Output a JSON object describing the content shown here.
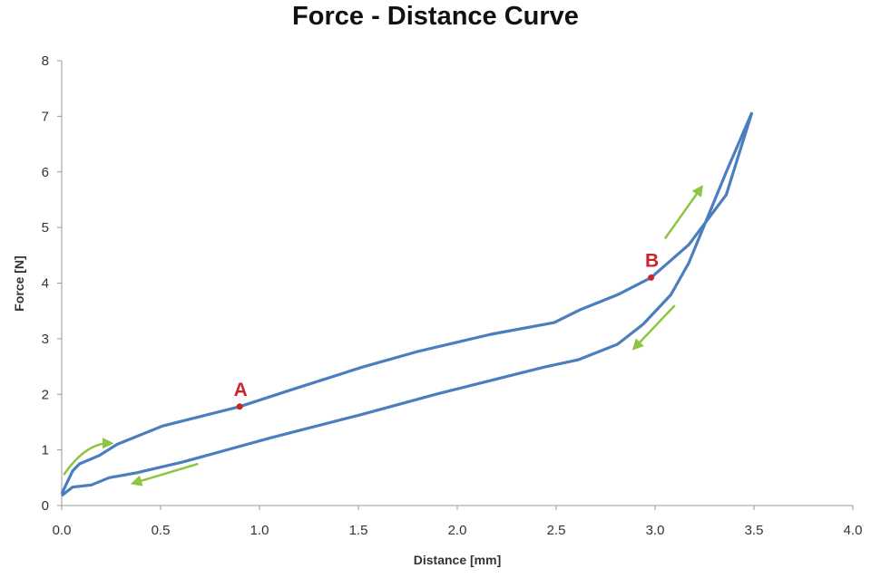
{
  "chart_data": {
    "type": "line",
    "title": "Force - Distance Curve",
    "xlabel": "Distance [mm]",
    "ylabel": "Force [N]",
    "xlim": [
      0,
      4.0
    ],
    "ylim": [
      0,
      8
    ],
    "xticks": [
      "0.0",
      "0.5",
      "1.0",
      "1.5",
      "2.0",
      "2.5",
      "3.0",
      "3.5",
      "4.0"
    ],
    "yticks": [
      "0",
      "1",
      "2",
      "3",
      "4",
      "5",
      "6",
      "7",
      "8"
    ],
    "grid": false,
    "legend": "none",
    "series_color": "#4a7ebf",
    "series": [
      {
        "x": [
          0,
          0.055,
          0.09,
          0.19,
          0.28,
          0.51,
          0.9,
          1.16,
          1.52,
          1.8,
          2.17,
          2.49,
          2.62,
          2.81,
          2.98,
          3.17,
          3.36,
          3.49
        ],
        "y": [
          0.21,
          0.62,
          0.75,
          0.9,
          1.1,
          1.43,
          1.78,
          2.08,
          2.49,
          2.77,
          3.08,
          3.29,
          3.52,
          3.79,
          4.1,
          4.69,
          5.59,
          7.07
        ]
      },
      {
        "x": [
          3.49,
          3.36,
          3.17,
          3.08,
          2.94,
          2.81,
          2.61,
          2.44,
          2.17,
          1.89,
          1.52,
          1.06,
          0.61,
          0.38,
          0.24,
          0.15,
          0.055,
          0
        ],
        "y": [
          7.07,
          6.0,
          4.36,
          3.79,
          3.26,
          2.9,
          2.62,
          2.49,
          2.25,
          2.0,
          1.64,
          1.22,
          0.78,
          0.59,
          0.5,
          0.37,
          0.33,
          0.18
        ]
      }
    ],
    "points": [
      {
        "label": "A",
        "x": 0.9,
        "y": 1.78
      },
      {
        "label": "B",
        "x": 2.98,
        "y": 4.1
      }
    ],
    "point_color": "#c8262b",
    "arrow_color": "#8cc63f",
    "arrows": [
      {
        "from": [
          0.01,
          0.55
        ],
        "via": [
          0.12,
          1.12
        ],
        "to": [
          0.24,
          1.12
        ]
      },
      {
        "from": [
          0.69,
          0.75
        ],
        "to": [
          0.37,
          0.41
        ]
      },
      {
        "from": [
          3.05,
          4.8
        ],
        "to": [
          3.23,
          5.7
        ]
      },
      {
        "from": [
          3.1,
          3.6
        ],
        "to": [
          2.9,
          2.85
        ]
      }
    ]
  }
}
